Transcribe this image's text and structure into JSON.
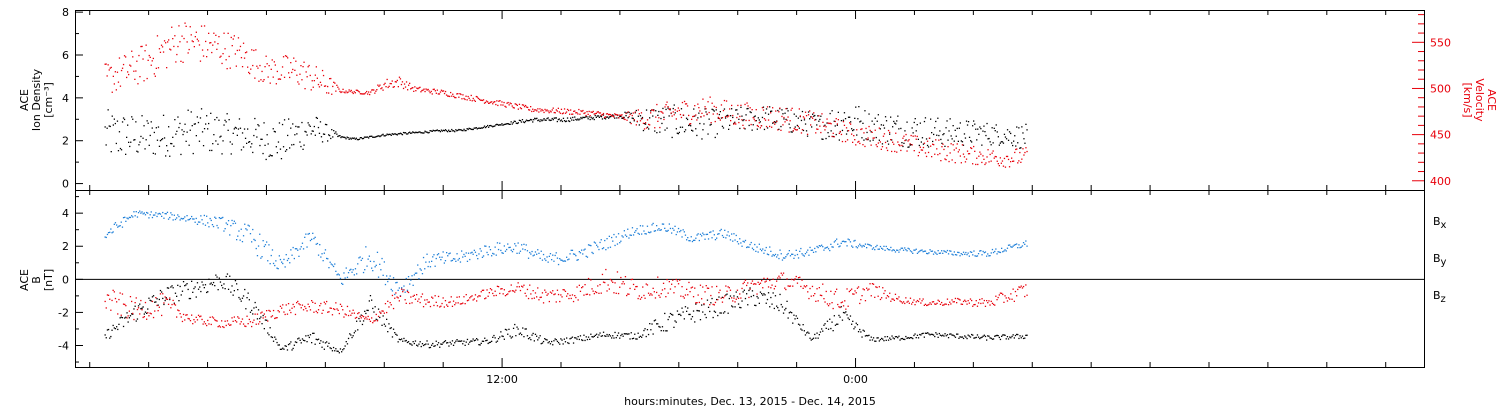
{
  "chart_data": [
    {
      "type": "scatter",
      "panel": "top",
      "ylabel_left": [
        "ACE",
        "Ion Density",
        "[cm⁻³]"
      ],
      "ylabel_right": [
        "ACE",
        "Velocity",
        "[km/s]"
      ],
      "ylim_left": [
        -0.3,
        8.1
      ],
      "ylim_right": [
        390,
        585
      ],
      "left_ticks": [
        "0",
        "2",
        "4",
        "6",
        "8"
      ],
      "right_ticks": [
        "400",
        "450",
        "500",
        "550"
      ],
      "colors": {
        "density": "#000000",
        "velocity": "#e8000b"
      },
      "series": [
        {
          "name": "",
          "axis": "left",
          "color": "#000000",
          "x": [
            -1.5,
            0.0,
            1.5,
            3.0,
            4.5,
            5.5,
            6.5,
            7.0,
            8.0,
            9.0,
            10.0,
            10.5,
            11.0,
            12.0,
            13.0,
            14.0,
            15.0,
            16.0,
            17.0,
            18.0,
            19.0,
            20.0,
            21.0,
            22.0,
            22.8,
            23.5,
            24.0,
            24.5,
            25.0,
            26.0,
            27.0,
            28.0,
            29.0,
            29.8
          ],
          "y": [
            2.3,
            2.2,
            2.5,
            2.3,
            2.0,
            2.6,
            2.2,
            2.1,
            2.3,
            2.4,
            2.5,
            2.5,
            2.6,
            2.8,
            3.0,
            3.0,
            3.1,
            3.2,
            3.0,
            2.9,
            2.8,
            3.0,
            3.1,
            2.9,
            2.7,
            3.0,
            2.9,
            2.7,
            2.6,
            2.5,
            2.4,
            2.4,
            2.3,
            2.2
          ],
          "spread": [
            1.2,
            1.0,
            1.1,
            0.9,
            1.0,
            0.8,
            0.05,
            0.05,
            0.05,
            0.05,
            0.05,
            0.05,
            0.05,
            0.05,
            0.1,
            0.1,
            0.1,
            0.1,
            0.7,
            0.8,
            0.7,
            0.6,
            0.6,
            0.6,
            0.6,
            1.0,
            0.9,
            0.7,
            0.8,
            0.8,
            0.7,
            0.6,
            0.5,
            0.6
          ]
        },
        {
          "name": "",
          "axis": "right",
          "color": "#e8000b",
          "x": [
            -1.5,
            0.0,
            1.0,
            2.0,
            3.0,
            4.0,
            5.0,
            6.0,
            6.5,
            7.5,
            8.0,
            8.5,
            9.0,
            10.0,
            11.0,
            12.0,
            13.0,
            14.0,
            15.0,
            16.0,
            17.0,
            18.0,
            19.0,
            20.0,
            21.0,
            22.0,
            23.0,
            24.0,
            25.0,
            26.0,
            27.0,
            28.0,
            29.0,
            29.8
          ],
          "y": [
            510,
            530,
            553,
            548,
            540,
            520,
            520,
            505,
            498,
            496,
            505,
            508,
            500,
            496,
            490,
            484,
            478,
            476,
            474,
            470,
            468,
            475,
            478,
            472,
            470,
            466,
            460,
            450,
            446,
            438,
            433,
            428,
            425,
            427
          ],
          "spread": [
            18,
            22,
            24,
            22,
            20,
            16,
            18,
            14,
            2,
            2,
            6,
            6,
            3,
            3,
            3,
            3,
            3,
            3,
            3,
            3,
            14,
            14,
            14,
            14,
            14,
            14,
            12,
            12,
            12,
            12,
            12,
            10,
            10,
            10
          ]
        }
      ]
    },
    {
      "type": "scatter",
      "panel": "bottom",
      "ylabel_left": [
        "ACE",
        "B",
        "[nT]"
      ],
      "ylim": [
        -5.3,
        5.4
      ],
      "left_ticks": [
        "-4",
        "-2",
        "0",
        "2",
        "4"
      ],
      "zero_line": true,
      "colors": {
        "bx": "#000000",
        "by": "#1e7fd8",
        "bz": "#e8000b"
      },
      "legend": [
        {
          "main": "B",
          "sub": "x",
          "color": "#000000"
        },
        {
          "main": "B",
          "sub": "y",
          "color": "#1e7fd8"
        },
        {
          "main": "B",
          "sub": "z",
          "color": "#e8000b"
        }
      ],
      "series": [
        {
          "name": "Bx",
          "color": "#000000",
          "x": [
            -1.5,
            -0.5,
            0.5,
            1.5,
            2.5,
            3.5,
            4.5,
            5.5,
            6.5,
            7.5,
            8.5,
            9.5,
            10.5,
            11.5,
            12.5,
            13.5,
            14.5,
            15.5,
            16.5,
            17.5,
            18.5,
            19.5,
            20.5,
            21.5,
            22.5,
            23.5,
            24.5,
            25.5,
            26.5,
            27.5,
            28.5,
            29.8
          ],
          "y": [
            -3.4,
            -2.0,
            -1.0,
            -0.5,
            0.0,
            -1.5,
            -4.2,
            -3.5,
            -4.3,
            -1.5,
            -3.7,
            -3.9,
            -3.8,
            -3.7,
            -3.0,
            -3.8,
            -3.6,
            -3.3,
            -3.4,
            -2.6,
            -2.0,
            -1.5,
            -1.0,
            -1.5,
            -3.6,
            -2.2,
            -3.6,
            -3.5,
            -3.3,
            -3.4,
            -3.5,
            -3.4
          ],
          "spread": [
            0.3,
            0.6,
            0.6,
            0.6,
            0.6,
            0.6,
            0.15,
            0.5,
            0.15,
            0.6,
            0.2,
            0.2,
            0.2,
            0.2,
            0.4,
            0.2,
            0.2,
            0.2,
            0.2,
            0.6,
            0.6,
            0.6,
            0.6,
            0.6,
            0.15,
            0.6,
            0.15,
            0.15,
            0.15,
            0.15,
            0.15,
            0.15
          ]
        },
        {
          "name": "By",
          "color": "#1e7fd8",
          "x": [
            -1.5,
            -0.5,
            0.5,
            1.5,
            2.5,
            3.5,
            4.5,
            5.5,
            6.5,
            7.5,
            8.5,
            9.5,
            10.5,
            11.5,
            12.5,
            13.5,
            14.5,
            15.5,
            16.5,
            17.5,
            18.5,
            19.5,
            20.5,
            21.5,
            22.5,
            23.5,
            24.5,
            25.5,
            26.5,
            27.5,
            28.5,
            29.8
          ],
          "y": [
            2.7,
            4.0,
            3.9,
            3.7,
            3.4,
            2.5,
            0.8,
            2.6,
            0.0,
            1.5,
            -0.6,
            1.2,
            1.3,
            1.8,
            2.0,
            1.2,
            1.5,
            2.2,
            3.0,
            3.2,
            2.5,
            2.8,
            2.0,
            1.5,
            1.7,
            2.3,
            2.0,
            1.8,
            1.7,
            1.6,
            1.6,
            2.2
          ],
          "spread": [
            0.4,
            0.2,
            0.2,
            0.3,
            0.4,
            0.8,
            0.5,
            0.5,
            0.5,
            0.8,
            0.6,
            0.5,
            0.4,
            0.4,
            0.4,
            0.4,
            0.4,
            0.4,
            0.3,
            0.3,
            0.3,
            0.3,
            0.3,
            0.3,
            0.3,
            0.3,
            0.15,
            0.15,
            0.15,
            0.15,
            0.2,
            0.2
          ]
        },
        {
          "name": "Bz",
          "color": "#e8000b",
          "x": [
            -1.5,
            -0.5,
            0.5,
            1.5,
            2.5,
            3.5,
            4.5,
            5.5,
            6.5,
            7.5,
            8.5,
            9.5,
            10.5,
            11.5,
            12.5,
            13.5,
            14.5,
            15.5,
            16.5,
            17.5,
            18.5,
            19.5,
            20.5,
            21.5,
            22.5,
            23.5,
            24.5,
            25.5,
            26.5,
            27.5,
            28.5,
            29.8
          ],
          "y": [
            -1.2,
            -1.8,
            -1.5,
            -2.4,
            -2.6,
            -2.5,
            -1.8,
            -1.6,
            -1.8,
            -2.5,
            -1.0,
            -1.3,
            -1.3,
            -0.8,
            -0.5,
            -1.0,
            -0.8,
            0.0,
            -0.6,
            -0.4,
            -0.8,
            -1.0,
            -0.4,
            0.0,
            -0.6,
            -1.3,
            -0.6,
            -1.2,
            -1.4,
            -1.3,
            -1.4,
            -0.6
          ],
          "spread": [
            0.8,
            0.7,
            0.7,
            0.3,
            0.3,
            0.4,
            0.4,
            0.4,
            0.4,
            0.3,
            0.5,
            0.4,
            0.3,
            0.3,
            0.4,
            0.5,
            0.5,
            0.8,
            0.7,
            0.6,
            0.6,
            0.6,
            0.6,
            0.5,
            0.6,
            0.7,
            0.5,
            0.2,
            0.2,
            0.2,
            0.3,
            0.5
          ]
        }
      ]
    }
  ],
  "x_axis": {
    "range_hours": [
      -2.5,
      43.3
    ],
    "tick_labels": [
      {
        "hour": 12,
        "label": "12:00"
      },
      {
        "hour": 24,
        "label": "0:00"
      }
    ],
    "minor_tick_step_hours": 2,
    "xlabel": "hours:minutes, Dec. 13, 2015 - Dec. 14, 2015"
  }
}
